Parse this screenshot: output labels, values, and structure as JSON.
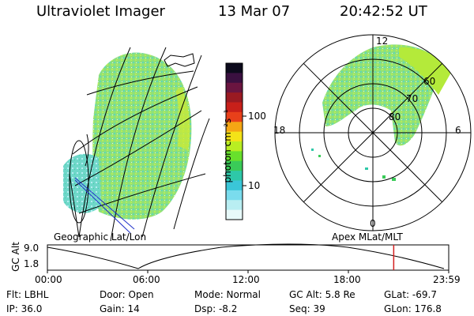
{
  "header": {
    "instrument": "Ultraviolet Imager",
    "date": "13 Mar 07",
    "time": "20:42:52 UT"
  },
  "colorbar": {
    "unit": "photon cm⁻²s⁻¹",
    "ticks": [
      "100",
      "10"
    ],
    "colors": [
      "#0c0a1c",
      "#3a1040",
      "#6a1540",
      "#9a1a22",
      "#c8201a",
      "#e8401a",
      "#f5a614",
      "#f4e318",
      "#b9ee22",
      "#68e02c",
      "#3acb58",
      "#2ec8a8",
      "#3ac6d8",
      "#7adced",
      "#b9eef2",
      "#e8fafa"
    ]
  },
  "map_left": {
    "label": "Geographic Lat/Lon"
  },
  "map_right": {
    "label": "Apex  MLat/MLT",
    "mlt_labels": [
      "12",
      "18",
      "6",
      "0"
    ],
    "lat_labels": [
      "60",
      "70",
      "80"
    ]
  },
  "timeline": {
    "ylabel": "GC Alt",
    "yticks": [
      "9.0",
      "1.8"
    ],
    "xticks": [
      "00:00",
      "06:00",
      "12:00",
      "18:00",
      "23:59"
    ],
    "current_marker_hours": 20.71,
    "marker_color": "#d42020"
  },
  "info": {
    "filter": "Flt: LBHL",
    "door": "Door: Open",
    "mode": "Mode: Normal",
    "gc_alt": "GC Alt: 5.8 Re",
    "glat": "GLat: -69.7",
    "ip": "IP: 36.0",
    "gain": "Gain: 14",
    "dsp": "Dsp:   -8.2",
    "seq": "Seq: 39",
    "glon": "GLon: 176.8"
  }
}
